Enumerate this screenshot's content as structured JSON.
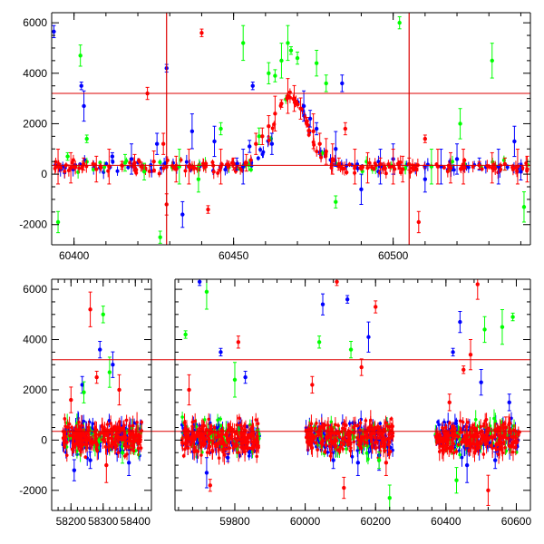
{
  "colors": {
    "blue": "#0000ff",
    "green": "#00ff00",
    "red": "#ff0000",
    "axis": "#000000",
    "reference_line": "#dd0000"
  },
  "chart_data": [
    {
      "type": "scatter",
      "title": "",
      "xlabel": "",
      "ylabel": "",
      "xlim": [
        60393,
        60543
      ],
      "ylim": [
        -2800,
        6400
      ],
      "grid": false,
      "legend": "none",
      "error_bars": true,
      "x_ticks": [
        60400,
        60450,
        60500
      ],
      "y_ticks": [
        -2000,
        0,
        2000,
        4000,
        6000
      ],
      "horizontal_lines": [
        3200,
        350
      ],
      "vertical_lines": [
        60429,
        60505
      ],
      "series": [
        {
          "color": "blue",
          "points": [
            [
              60393.7,
              5650
            ],
            [
              60402.3,
              3500
            ],
            [
              60403.1,
              2700
            ],
            [
              60412,
              700
            ],
            [
              60418,
              600
            ],
            [
              60426,
              1200
            ],
            [
              60429,
              4200
            ],
            [
              60434,
              -1600
            ],
            [
              60437,
              1700
            ],
            [
              60444,
              1300
            ],
            [
              60451,
              400
            ],
            [
              60453,
              300
            ],
            [
              60455,
              1100
            ],
            [
              60456,
              3500
            ],
            [
              60462,
              1200
            ],
            [
              60472,
              2700
            ],
            [
              60474,
              2200
            ],
            [
              60476,
              1800
            ],
            [
              60482,
              1000
            ],
            [
              60484,
              3600
            ],
            [
              60490,
              -600
            ],
            [
              60496,
              300
            ],
            [
              60500,
              600
            ],
            [
              60510,
              -200
            ],
            [
              60515,
              300
            ],
            [
              60520,
              600
            ],
            [
              60527,
              400
            ],
            [
              60533,
              300
            ],
            [
              60538,
              1300
            ],
            [
              60540,
              100
            ]
          ]
        },
        {
          "color": "green",
          "points": [
            [
              60395,
              -1900
            ],
            [
              60398,
              700
            ],
            [
              60402,
              4700
            ],
            [
              60404,
              1400
            ],
            [
              60416,
              450
            ],
            [
              60422,
              100
            ],
            [
              60427,
              -2500
            ],
            [
              60433,
              300
            ],
            [
              60439,
              -200
            ],
            [
              60446,
              1800
            ],
            [
              60453,
              5200
            ],
            [
              60458,
              1500
            ],
            [
              60461,
              4000
            ],
            [
              60463,
              3900
            ],
            [
              60465,
              4500
            ],
            [
              60467,
              5200
            ],
            [
              60468,
              4900
            ],
            [
              60470,
              4600
            ],
            [
              60476,
              4400
            ],
            [
              60479,
              3600
            ],
            [
              60482,
              -1100
            ],
            [
              60502,
              6000
            ],
            [
              60512,
              300
            ],
            [
              60521,
              2000
            ],
            [
              60531,
              4500
            ],
            [
              60535,
              400
            ],
            [
              60541,
              -1300
            ]
          ]
        },
        {
          "color": "red",
          "points": [
            [
              60395,
              300
            ],
            [
              60399,
              250
            ],
            [
              60403,
              400
            ],
            [
              60407,
              200
            ],
            [
              60411,
              300
            ],
            [
              60415,
              350
            ],
            [
              60419,
              450
            ],
            [
              60423,
              3200
            ],
            [
              60425,
              500
            ],
            [
              60428,
              1200
            ],
            [
              60429,
              -1200
            ],
            [
              60432,
              200
            ],
            [
              60436,
              300
            ],
            [
              60440,
              5600
            ],
            [
              60442,
              -1400
            ],
            [
              60446,
              300
            ],
            [
              60450,
              400
            ],
            [
              60454,
              450
            ],
            [
              60457,
              1200
            ],
            [
              60459,
              1500
            ],
            [
              60461,
              1900
            ],
            [
              60463,
              2400
            ],
            [
              60465,
              2800
            ],
            [
              60467,
              3100
            ],
            [
              60469,
              3000
            ],
            [
              60471,
              2600
            ],
            [
              60473,
              2100
            ],
            [
              60475,
              1700
            ],
            [
              60477,
              1200
            ],
            [
              60479,
              900
            ],
            [
              60481,
              600
            ],
            [
              60483,
              400
            ],
            [
              60485,
              1800
            ],
            [
              60488,
              300
            ],
            [
              60492,
              250
            ],
            [
              60496,
              400
            ],
            [
              60500,
              300
            ],
            [
              60503,
              200
            ],
            [
              60505,
              400
            ],
            [
              60508,
              -1900
            ],
            [
              60510,
              1400
            ],
            [
              60514,
              300
            ],
            [
              60518,
              250
            ],
            [
              60522,
              300
            ],
            [
              60527,
              350
            ],
            [
              60531,
              250
            ],
            [
              60535,
              400
            ],
            [
              60539,
              300
            ],
            [
              60542,
              200
            ]
          ]
        }
      ]
    },
    {
      "type": "scatter",
      "title": "",
      "xlabel": "",
      "ylabel": "",
      "xlim": [
        58140,
        60640
      ],
      "ylim": [
        -2800,
        6400
      ],
      "grid": false,
      "legend": "none",
      "error_bars": true,
      "broken_x_axis": true,
      "x_ticks": [
        58200,
        58300,
        58400,
        59800,
        60000,
        60200,
        60400,
        60600
      ],
      "y_ticks": [
        -2000,
        0,
        2000,
        4000,
        6000
      ],
      "horizontal_lines": [
        3200,
        350
      ],
      "vertical_lines": [],
      "segments": [
        {
          "range": [
            58140,
            58450
          ],
          "ticks": [
            58200,
            58300,
            58400
          ]
        },
        {
          "range": [
            59630,
            60640
          ],
          "ticks": [
            59800,
            60000,
            60200,
            60400,
            60600
          ]
        }
      ],
      "observing_seasons": [
        [
          58175,
          58420
        ],
        [
          59650,
          59870
        ],
        [
          60000,
          60250
        ],
        [
          60370,
          60610
        ]
      ],
      "series": [
        {
          "color": "blue",
          "points": [
            [
              58210,
              -1200
            ],
            [
              58235,
              2200
            ],
            [
              58260,
              -800
            ],
            [
              58290,
              3600
            ],
            [
              58330,
              3000
            ],
            [
              58380,
              -900
            ],
            [
              59700,
              6300
            ],
            [
              59720,
              -1300
            ],
            [
              59760,
              3500
            ],
            [
              59780,
              -700
            ],
            [
              59830,
              2500
            ],
            [
              60050,
              5400
            ],
            [
              60080,
              -800
            ],
            [
              60120,
              5600
            ],
            [
              60150,
              -900
            ],
            [
              60180,
              4100
            ],
            [
              60210,
              -600
            ],
            [
              60420,
              3500
            ],
            [
              60440,
              4700
            ],
            [
              60460,
              -1000
            ],
            [
              60500,
              2300
            ],
            [
              60540,
              -800
            ],
            [
              60580,
              1500
            ]
          ]
        },
        {
          "color": "green",
          "points": [
            [
              58240,
              1900
            ],
            [
              58300,
              5000
            ],
            [
              58320,
              2700
            ],
            [
              58360,
              -500
            ],
            [
              59660,
              4200
            ],
            [
              59720,
              5900
            ],
            [
              59800,
              2400
            ],
            [
              60040,
              3900
            ],
            [
              60130,
              3600
            ],
            [
              60210,
              -800
            ],
            [
              60240,
              -2300
            ],
            [
              60430,
              -1600
            ],
            [
              60510,
              4400
            ],
            [
              60560,
              4500
            ],
            [
              60590,
              4900
            ]
          ]
        },
        {
          "color": "red",
          "points": [
            [
              58200,
              1600
            ],
            [
              58260,
              5200
            ],
            [
              58280,
              2500
            ],
            [
              58310,
              -1000
            ],
            [
              58350,
              2000
            ],
            [
              59670,
              2000
            ],
            [
              59730,
              -1800
            ],
            [
              59810,
              3900
            ],
            [
              60020,
              2200
            ],
            [
              60090,
              6300
            ],
            [
              60110,
              -1900
            ],
            [
              60160,
              2900
            ],
            [
              60200,
              5300
            ],
            [
              60230,
              -900
            ],
            [
              60410,
              1500
            ],
            [
              60450,
              2800
            ],
            [
              60470,
              3400
            ],
            [
              60490,
              6200
            ],
            [
              60520,
              -2000
            ],
            [
              60570,
              500
            ]
          ]
        }
      ]
    }
  ]
}
